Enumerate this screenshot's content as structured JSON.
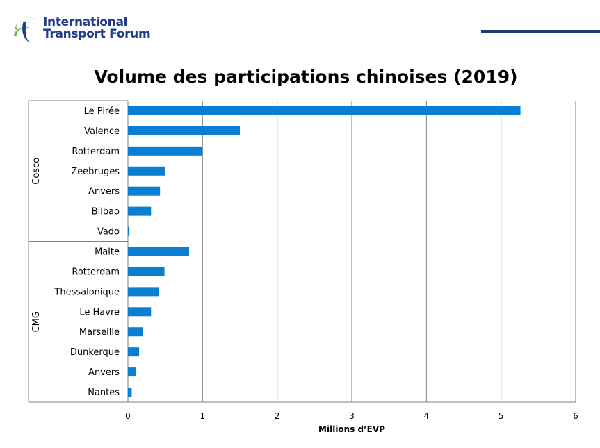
{
  "header": {
    "logo_line1": "International",
    "logo_line2": "Transport Forum"
  },
  "colors": {
    "bar": "#0a7fd2",
    "grid": "#808080",
    "logo_blue": "#1f3c88",
    "logo_green": "#5bbf2f"
  },
  "chart_data": {
    "type": "bar",
    "orientation": "horizontal",
    "title": "Volume des participations chinoises (2019)",
    "xlabel": "Millions d’EVP",
    "ylabel": "",
    "xlim": [
      0,
      6
    ],
    "xticks": [
      "0",
      "1",
      "2",
      "3",
      "4",
      "5",
      "6"
    ],
    "grid": true,
    "groups": [
      {
        "name": "Cosco",
        "categories": [
          "Le Pirée",
          "Valence",
          "Rotterdam",
          "Zeebruges",
          "Anvers",
          "Bilbao",
          "Vado"
        ],
        "values": [
          5.26,
          1.5,
          1.0,
          0.5,
          0.43,
          0.31,
          0.02
        ]
      },
      {
        "name": "CMG",
        "categories": [
          "Malte",
          "Rotterdam",
          "Thessalonique",
          "Le Havre",
          "Marseille",
          "Dunkerque",
          "Anvers",
          "Nantes"
        ],
        "values": [
          0.82,
          0.49,
          0.41,
          0.31,
          0.2,
          0.15,
          0.11,
          0.05
        ]
      }
    ]
  }
}
